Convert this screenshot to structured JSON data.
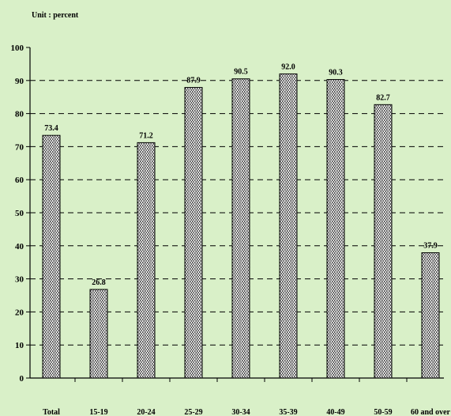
{
  "chart_data": {
    "type": "bar",
    "unit_label": "Unit : percent",
    "title": "",
    "xlabel": "",
    "ylabel": "",
    "categories": [
      "Total",
      "15-19",
      "20-24",
      "25-29",
      "30-34",
      "35-39",
      "40-49",
      "50-59",
      "60 and over"
    ],
    "values": [
      73.4,
      26.8,
      71.2,
      87.9,
      90.5,
      92.0,
      90.3,
      82.7,
      37.9
    ],
    "data_labels": [
      "73.4",
      "26.8",
      "71.2",
      "87.9",
      "90.5",
      "92.0",
      "90.3",
      "82.7",
      "37.9"
    ],
    "ylim": [
      0,
      100
    ],
    "yticks": [
      0,
      10,
      20,
      30,
      40,
      50,
      60,
      70,
      80,
      90,
      100
    ],
    "grid": "horizontal dashed",
    "legend": "none",
    "colors": {
      "background": "#d9f0c8",
      "bar_fill": "#ffffff",
      "bar_pattern": "#000000",
      "grid": "#000000"
    }
  }
}
